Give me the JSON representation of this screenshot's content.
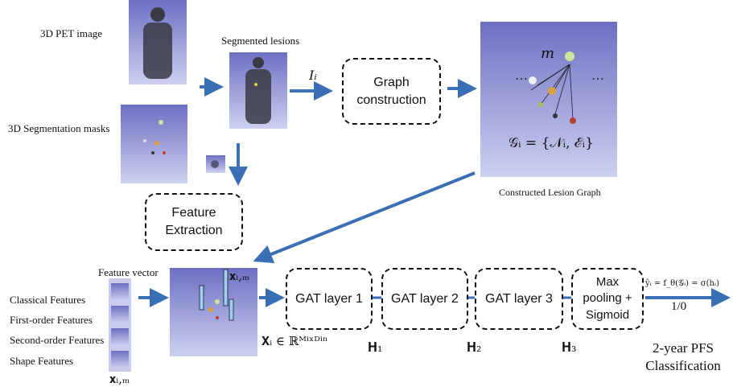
{
  "inputs": {
    "pet_image": "3D PET image",
    "segmentation_masks": "3D Segmentation masks"
  },
  "segmented_lesions": "Segmented lesions",
  "graph_input": "Iᵢ",
  "graph_construction": "Graph construction",
  "graph": {
    "node_label": "m",
    "formula": "𝒢ᵢ = {𝒩ᵢ, ℰᵢ}",
    "caption": "Constructed Lesion Graph"
  },
  "feature_extraction": "Feature Extraction",
  "feature_vector": {
    "title": "Feature vector",
    "features": [
      "Classical Features",
      "First-order Features",
      "Second-order Features",
      "Shape Features"
    ],
    "symbol": "𝐱ᵢ,ₘ"
  },
  "feature_matrix": {
    "symbol": "𝐱ᵢ,ₘ",
    "formula": "𝐗ᵢ ∈ ℝᴹⁱˣᴰⁱⁿ"
  },
  "layers": [
    {
      "label": "GAT layer 1",
      "output": "𝐇₁"
    },
    {
      "label": "GAT layer 2",
      "output": "𝐇₂"
    },
    {
      "label": "GAT layer 3",
      "output": "𝐇₃"
    }
  ],
  "pooling": "Max pooling + Sigmoid",
  "prediction": {
    "formula": "ŷᵢ = f_θ(𝒢ᵢ) = σ(hᵢ)",
    "output": "1/0",
    "task": "2-year PFS Classification"
  }
}
